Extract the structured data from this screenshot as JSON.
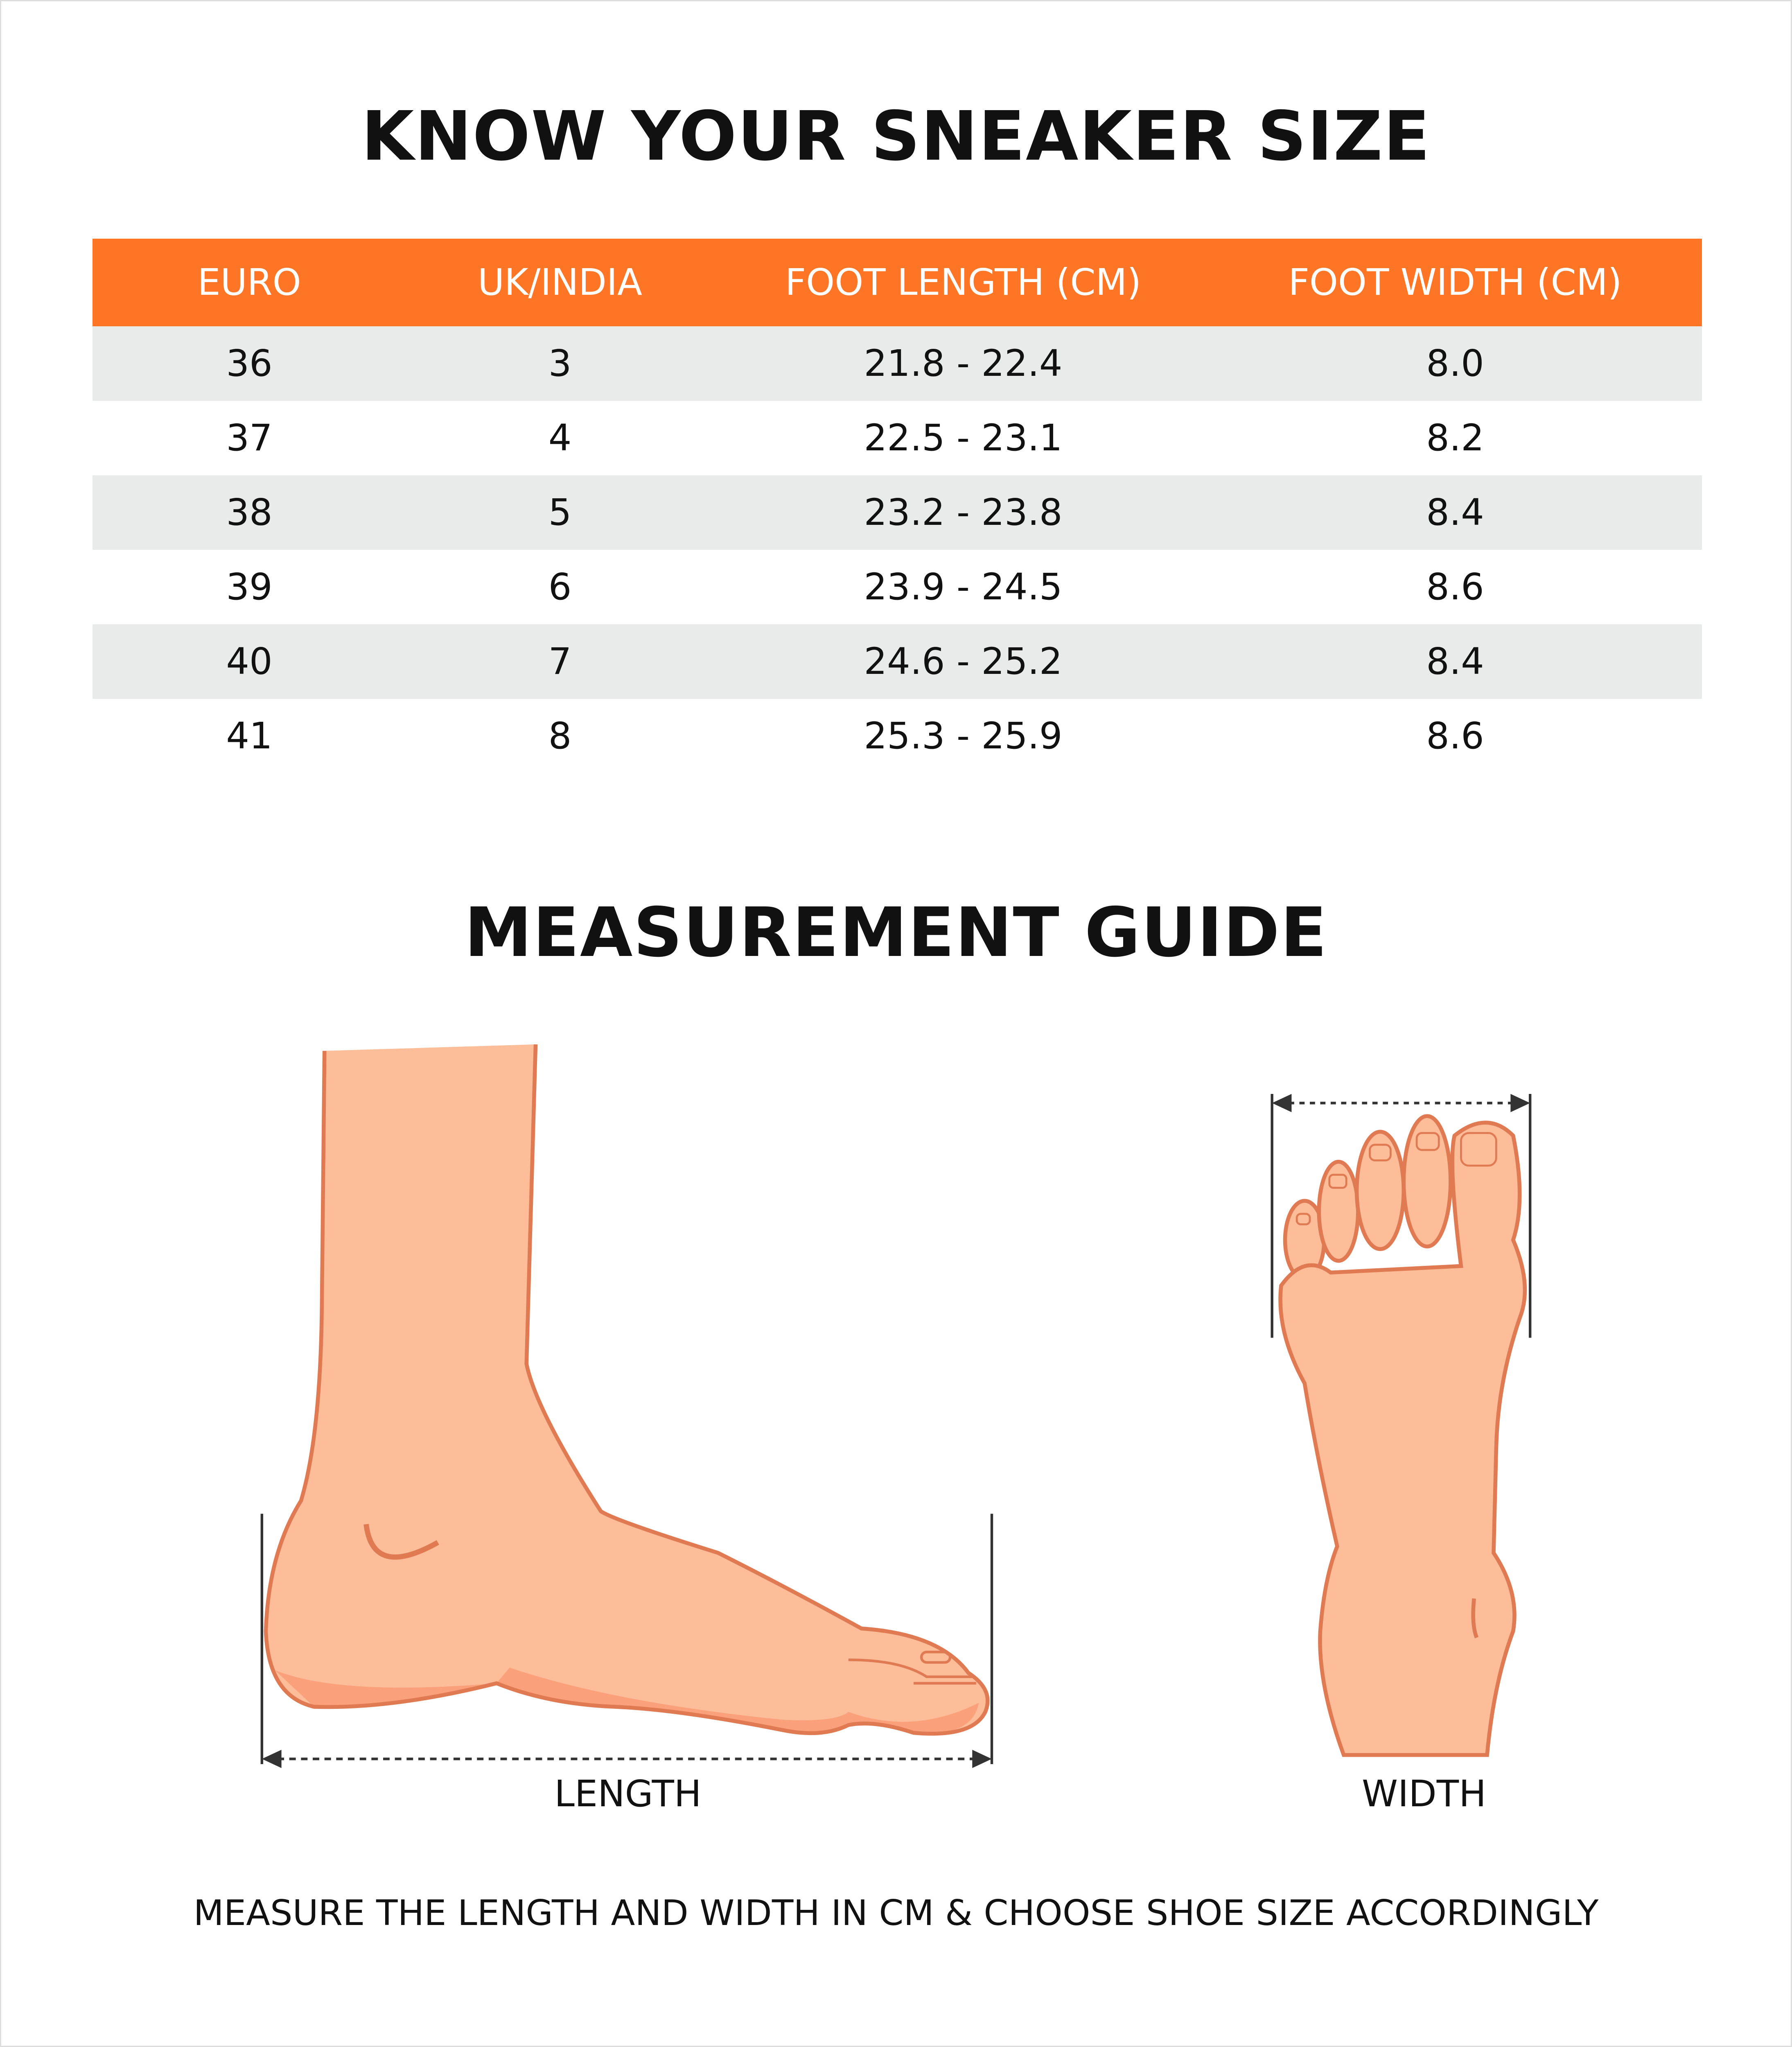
{
  "title": "KNOW YOUR SNEAKER SIZE",
  "table": {
    "headers": [
      "EURO",
      "UK/INDIA",
      "FOOT LENGTH (CM)",
      "FOOT WIDTH (CM)"
    ],
    "rows": [
      [
        "36",
        "3",
        "21.8 - 22.4",
        "8.0"
      ],
      [
        "37",
        "4",
        "22.5 - 23.1",
        "8.2"
      ],
      [
        "38",
        "5",
        "23.2 - 23.8",
        "8.4"
      ],
      [
        "39",
        "6",
        "23.9 - 24.5",
        "8.6"
      ],
      [
        "40",
        "7",
        "24.6 - 25.2",
        "8.4"
      ],
      [
        "41",
        "8",
        "25.3 - 25.9",
        "8.6"
      ]
    ]
  },
  "guide_title": "MEASUREMENT GUIDE",
  "length_label": "LENGTH",
  "width_label": "WIDTH",
  "footer": "MEASURE THE LENGTH AND WIDTH IN CM & CHOOSE SHOE SIZE ACCORDINGLY",
  "colors": {
    "header": "#FE7625",
    "alt_row": "#E9EBEA",
    "skin": "#FCBD98",
    "outline": "#E07A52",
    "shadow": "#FAA07A"
  }
}
